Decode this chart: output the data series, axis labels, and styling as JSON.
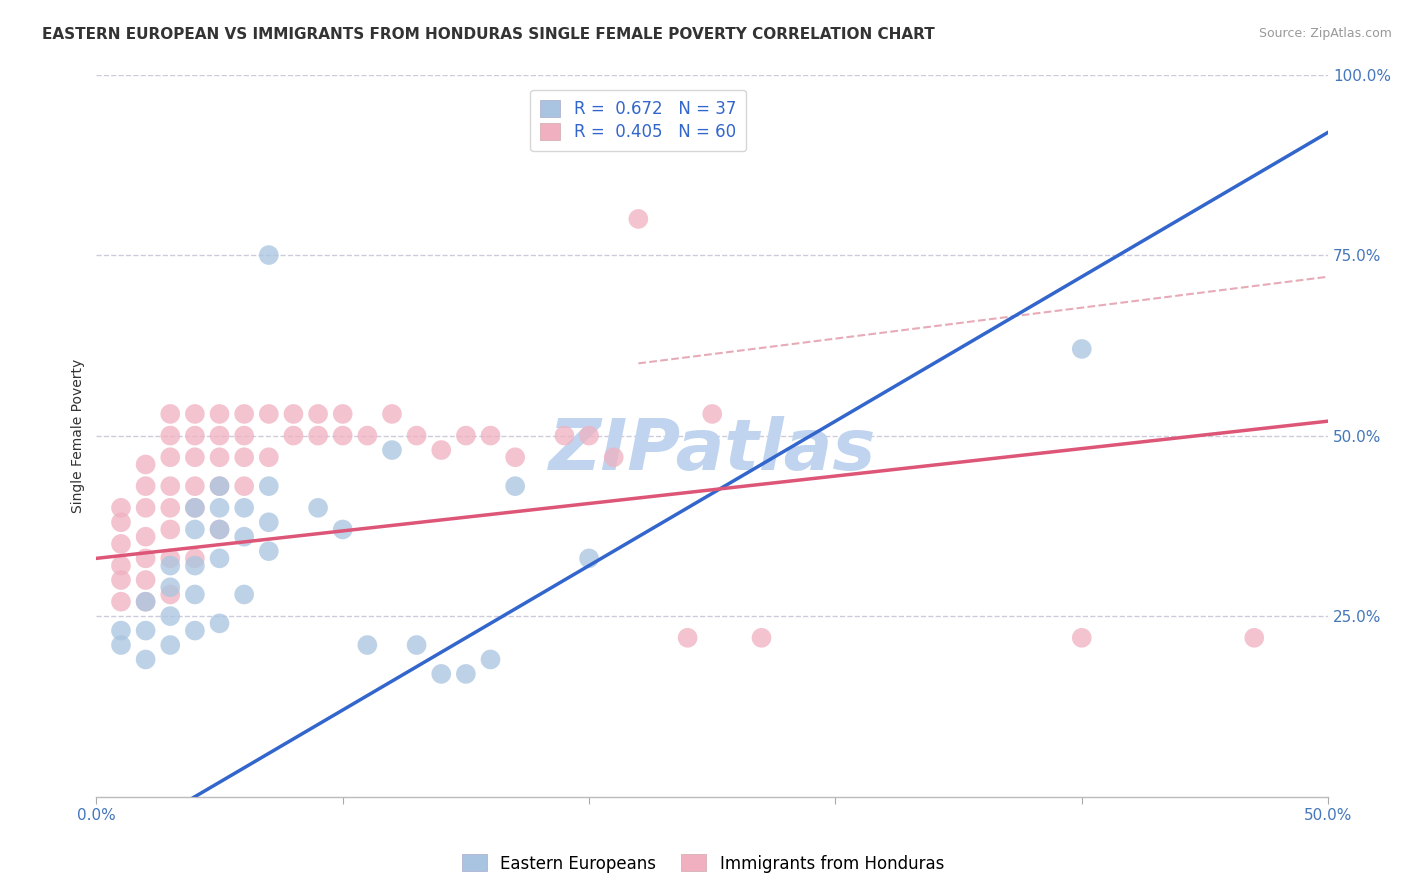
{
  "title": "EASTERN EUROPEAN VS IMMIGRANTS FROM HONDURAS SINGLE FEMALE POVERTY CORRELATION CHART",
  "source": "Source: ZipAtlas.com",
  "xlabel": "",
  "ylabel": "Single Female Poverty",
  "xlim": [
    0.0,
    0.5
  ],
  "ylim": [
    0.0,
    1.0
  ],
  "xticks": [
    0.0,
    0.1,
    0.2,
    0.3,
    0.4,
    0.5
  ],
  "yticks": [
    0.25,
    0.5,
    0.75,
    1.0
  ],
  "xticklabels": [
    "0.0%",
    "",
    "",
    "",
    "",
    "50.0%"
  ],
  "yticklabels": [
    "25.0%",
    "50.0%",
    "75.0%",
    "100.0%"
  ],
  "blue_R": 0.672,
  "blue_N": 37,
  "pink_R": 0.405,
  "pink_N": 60,
  "blue_color": "#a8c4e0",
  "pink_color": "#f0b0c0",
  "blue_line_color": "#3366cc",
  "pink_line_color": "#dd5577",
  "grid_color": "#ccccdd",
  "legend_R_color": "#3366cc",
  "blue_scatter": [
    [
      0.01,
      0.21
    ],
    [
      0.01,
      0.23
    ],
    [
      0.02,
      0.19
    ],
    [
      0.02,
      0.23
    ],
    [
      0.02,
      0.27
    ],
    [
      0.03,
      0.21
    ],
    [
      0.03,
      0.25
    ],
    [
      0.03,
      0.29
    ],
    [
      0.03,
      0.32
    ],
    [
      0.04,
      0.23
    ],
    [
      0.04,
      0.28
    ],
    [
      0.04,
      0.32
    ],
    [
      0.04,
      0.37
    ],
    [
      0.04,
      0.4
    ],
    [
      0.05,
      0.24
    ],
    [
      0.05,
      0.33
    ],
    [
      0.05,
      0.37
    ],
    [
      0.05,
      0.4
    ],
    [
      0.05,
      0.43
    ],
    [
      0.06,
      0.28
    ],
    [
      0.06,
      0.36
    ],
    [
      0.06,
      0.4
    ],
    [
      0.07,
      0.34
    ],
    [
      0.07,
      0.38
    ],
    [
      0.07,
      0.43
    ],
    [
      0.07,
      0.75
    ],
    [
      0.09,
      0.4
    ],
    [
      0.1,
      0.37
    ],
    [
      0.11,
      0.21
    ],
    [
      0.12,
      0.48
    ],
    [
      0.13,
      0.21
    ],
    [
      0.14,
      0.17
    ],
    [
      0.15,
      0.17
    ],
    [
      0.16,
      0.19
    ],
    [
      0.17,
      0.43
    ],
    [
      0.2,
      0.33
    ],
    [
      0.4,
      0.62
    ]
  ],
  "pink_scatter": [
    [
      0.01,
      0.27
    ],
    [
      0.01,
      0.3
    ],
    [
      0.01,
      0.32
    ],
    [
      0.01,
      0.35
    ],
    [
      0.01,
      0.38
    ],
    [
      0.01,
      0.4
    ],
    [
      0.02,
      0.27
    ],
    [
      0.02,
      0.3
    ],
    [
      0.02,
      0.33
    ],
    [
      0.02,
      0.36
    ],
    [
      0.02,
      0.4
    ],
    [
      0.02,
      0.43
    ],
    [
      0.02,
      0.46
    ],
    [
      0.03,
      0.28
    ],
    [
      0.03,
      0.33
    ],
    [
      0.03,
      0.37
    ],
    [
      0.03,
      0.4
    ],
    [
      0.03,
      0.43
    ],
    [
      0.03,
      0.47
    ],
    [
      0.03,
      0.5
    ],
    [
      0.03,
      0.53
    ],
    [
      0.04,
      0.33
    ],
    [
      0.04,
      0.4
    ],
    [
      0.04,
      0.43
    ],
    [
      0.04,
      0.47
    ],
    [
      0.04,
      0.5
    ],
    [
      0.04,
      0.53
    ],
    [
      0.05,
      0.37
    ],
    [
      0.05,
      0.43
    ],
    [
      0.05,
      0.47
    ],
    [
      0.05,
      0.5
    ],
    [
      0.05,
      0.53
    ],
    [
      0.06,
      0.43
    ],
    [
      0.06,
      0.47
    ],
    [
      0.06,
      0.5
    ],
    [
      0.06,
      0.53
    ],
    [
      0.07,
      0.47
    ],
    [
      0.07,
      0.53
    ],
    [
      0.08,
      0.5
    ],
    [
      0.08,
      0.53
    ],
    [
      0.09,
      0.5
    ],
    [
      0.09,
      0.53
    ],
    [
      0.1,
      0.5
    ],
    [
      0.1,
      0.53
    ],
    [
      0.11,
      0.5
    ],
    [
      0.12,
      0.53
    ],
    [
      0.13,
      0.5
    ],
    [
      0.14,
      0.48
    ],
    [
      0.15,
      0.5
    ],
    [
      0.16,
      0.5
    ],
    [
      0.17,
      0.47
    ],
    [
      0.19,
      0.5
    ],
    [
      0.2,
      0.5
    ],
    [
      0.21,
      0.47
    ],
    [
      0.22,
      0.8
    ],
    [
      0.24,
      0.22
    ],
    [
      0.25,
      0.53
    ],
    [
      0.27,
      0.22
    ],
    [
      0.4,
      0.22
    ],
    [
      0.47,
      0.22
    ]
  ],
  "blue_line_x": [
    0.0,
    0.5
  ],
  "blue_line_y": [
    -0.08,
    0.92
  ],
  "pink_line_x": [
    0.0,
    0.5
  ],
  "pink_line_y": [
    0.33,
    0.52
  ],
  "diag_line_x": [
    0.22,
    0.5
  ],
  "diag_line_y": [
    0.6,
    0.72
  ],
  "diag_line_color": "#dd8899",
  "background_color": "#ffffff",
  "title_fontsize": 11,
  "axis_label_fontsize": 10,
  "tick_fontsize": 11,
  "legend_fontsize": 12,
  "source_fontsize": 9,
  "watermark": "ZIPatlas",
  "watermark_color": "#c0d4f0",
  "watermark_fontsize": 52
}
